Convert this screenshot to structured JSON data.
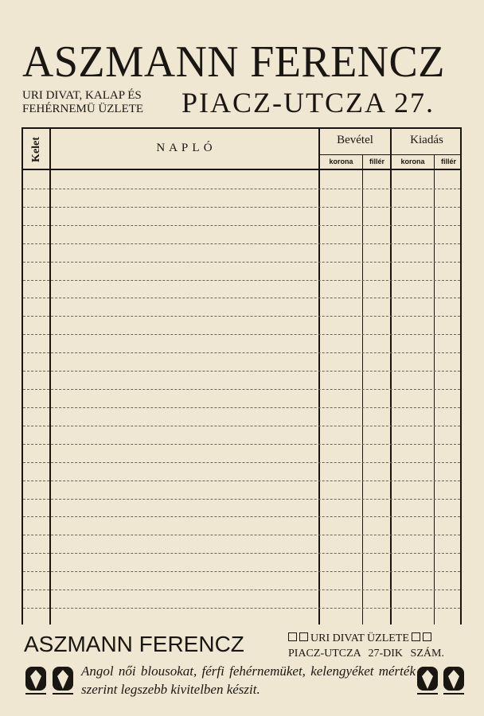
{
  "header": {
    "title": "ASZMANN FERENCZ",
    "subtitle_line1": "URI DIVAT, KALAP ÉS",
    "subtitle_line2": "FEHÉRNEMÜ ÜZLETE",
    "address": "PIACZ-UTCZA 27."
  },
  "table": {
    "columns": {
      "kelet": "Kelet",
      "naplo": "N A P L Ó",
      "bevetel": "Bevétel",
      "kiadas": "Kiadás"
    },
    "subcolumns": {
      "bevetel_korona": "korona",
      "bevetel_filler": "fillér",
      "kiadas_korona": "korona",
      "kiadas_filler": "fillér"
    },
    "rows": 25
  },
  "footer": {
    "name": "ASZMANN FERENCZ",
    "line1": "URI DIVAT ÜZLETE",
    "line2": "PIACZ-UTCZA 27-DIK SZÁM.",
    "text": "Angol női blousokat, férfi fehérnemüket, kelengyéket mérték szerint legszebb kivitelben készit."
  }
}
